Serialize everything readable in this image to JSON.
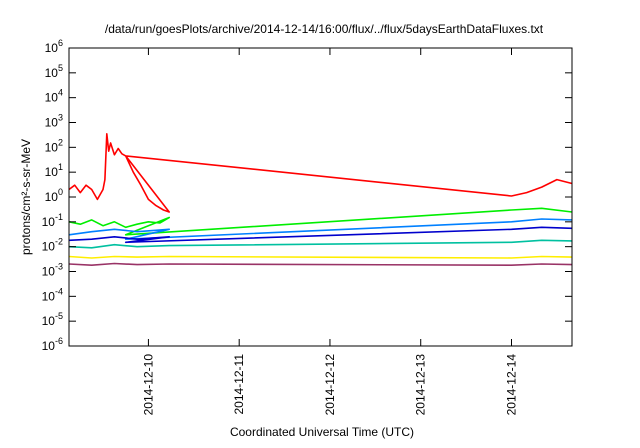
{
  "chart_data": {
    "type": "line",
    "title": "/data/run/goesPlots/archive/2014-12-14/16:00/flux/../flux/5daysEarthDataFluxes.txt",
    "xlabel": "Coordinated Universal Time (UTC)",
    "ylabel": "protons/cm²-s-sr-MeV",
    "x_axis_type": "date",
    "xlim": [
      "2014-12-09 03:00",
      "2014-12-14 16:00"
    ],
    "x_ticks": [
      {
        "x": "2014-12-10 00:00",
        "label": "2014-12-10"
      },
      {
        "x": "2014-12-11 00:00",
        "label": "2014-12-11"
      },
      {
        "x": "2014-12-12 00:00",
        "label": "2014-12-12"
      },
      {
        "x": "2014-12-13 00:00",
        "label": "2014-12-13"
      },
      {
        "x": "2014-12-14 00:00",
        "label": "2014-12-14"
      }
    ],
    "y_scale": "log",
    "ylim": [
      1e-06,
      1000000.0
    ],
    "y_ticks": [
      {
        "value": 1e-06,
        "base": "10",
        "exp": "-6"
      },
      {
        "value": 1e-05,
        "base": "10",
        "exp": "-5"
      },
      {
        "value": 0.0001,
        "base": "10",
        "exp": "-4"
      },
      {
        "value": 0.001,
        "base": "10",
        "exp": "-3"
      },
      {
        "value": 0.01,
        "base": "10",
        "exp": "-2"
      },
      {
        "value": 0.1,
        "base": "10",
        "exp": "-1"
      },
      {
        "value": 1,
        "base": "10",
        "exp": "0"
      },
      {
        "value": 10,
        "base": "10",
        "exp": "1"
      },
      {
        "value": 100,
        "base": "10",
        "exp": "2"
      },
      {
        "value": 1000,
        "base": "10",
        "exp": "3"
      },
      {
        "value": 10000,
        "base": "10",
        "exp": "4"
      },
      {
        "value": 100000,
        "base": "10",
        "exp": "5"
      },
      {
        "value": 1000000,
        "base": "10",
        "exp": "6"
      }
    ],
    "grid": false,
    "series": [
      {
        "color": "#ff0000",
        "points": [
          [
            "2014-12-09 03:00",
            2
          ],
          [
            "2014-12-09 04:30",
            3
          ],
          [
            "2014-12-09 06:00",
            1.5
          ],
          [
            "2014-12-09 07:30",
            3
          ],
          [
            "2014-12-09 09:00",
            2
          ],
          [
            "2014-12-09 10:30",
            0.8
          ],
          [
            "2014-12-09 12:00",
            2
          ],
          [
            "2014-12-09 12:30",
            5
          ],
          [
            "2014-12-09 13:00",
            350
          ],
          [
            "2014-12-09 13:30",
            70
          ],
          [
            "2014-12-09 14:00",
            150
          ],
          [
            "2014-12-09 15:00",
            50
          ],
          [
            "2014-12-09 16:00",
            90
          ],
          [
            "2014-12-09 17:00",
            55
          ],
          [
            "2014-12-09 18:00",
            45
          ],
          [
            "2014-12-09 20:00",
            10
          ],
          [
            "2014-12-09 22:00",
            3
          ],
          [
            "2014-12-10 00:00",
            0.8
          ],
          [
            "2014-12-10 02:00",
            0.45
          ],
          [
            "2014-12-10 04:00",
            0.3
          ],
          [
            "2014-12-10 05:30",
            0.25
          ],
          [
            "2014-12-09 18:00",
            45
          ],
          [
            "2014-12-14 00:00",
            1.1
          ],
          [
            "2014-12-14 04:00",
            1.5
          ],
          [
            "2014-12-14 08:00",
            2.5
          ],
          [
            "2014-12-14 12:00",
            5
          ],
          [
            "2014-12-14 16:00",
            3.5
          ]
        ]
      },
      {
        "color": "#00ee00",
        "points": [
          [
            "2014-12-09 03:00",
            0.1
          ],
          [
            "2014-12-09 06:00",
            0.08
          ],
          [
            "2014-12-09 09:00",
            0.12
          ],
          [
            "2014-12-09 12:00",
            0.07
          ],
          [
            "2014-12-09 15:00",
            0.1
          ],
          [
            "2014-12-09 18:00",
            0.06
          ],
          [
            "2014-12-09 21:00",
            0.08
          ],
          [
            "2014-12-10 00:00",
            0.1
          ],
          [
            "2014-12-10 03:00",
            0.09
          ],
          [
            "2014-12-10 05:30",
            0.15
          ],
          [
            "2014-12-09 18:00",
            0.03
          ],
          [
            "2014-12-14 00:00",
            0.3
          ],
          [
            "2014-12-14 08:00",
            0.35
          ],
          [
            "2014-12-14 16:00",
            0.25
          ]
        ]
      },
      {
        "color": "#0080ff",
        "points": [
          [
            "2014-12-09 03:00",
            0.03
          ],
          [
            "2014-12-09 09:00",
            0.04
          ],
          [
            "2014-12-09 15:00",
            0.05
          ],
          [
            "2014-12-09 21:00",
            0.04
          ],
          [
            "2014-12-10 05:30",
            0.05
          ],
          [
            "2014-12-09 18:00",
            0.02
          ],
          [
            "2014-12-14 00:00",
            0.1
          ],
          [
            "2014-12-14 08:00",
            0.13
          ],
          [
            "2014-12-14 16:00",
            0.12
          ]
        ]
      },
      {
        "color": "#0000cc",
        "points": [
          [
            "2014-12-09 03:00",
            0.018
          ],
          [
            "2014-12-09 09:00",
            0.02
          ],
          [
            "2014-12-09 15:00",
            0.025
          ],
          [
            "2014-12-09 21:00",
            0.02
          ],
          [
            "2014-12-10 05:30",
            0.025
          ],
          [
            "2014-12-09 18:00",
            0.015
          ],
          [
            "2014-12-14 00:00",
            0.05
          ],
          [
            "2014-12-14 08:00",
            0.06
          ],
          [
            "2014-12-14 16:00",
            0.055
          ]
        ]
      },
      {
        "color": "#00c0a0",
        "points": [
          [
            "2014-12-09 03:00",
            0.01
          ],
          [
            "2014-12-09 09:00",
            0.009
          ],
          [
            "2014-12-09 15:00",
            0.012
          ],
          [
            "2014-12-09 21:00",
            0.01
          ],
          [
            "2014-12-10 05:30",
            0.011
          ],
          [
            "2014-12-14 00:00",
            0.015
          ],
          [
            "2014-12-14 08:00",
            0.018
          ],
          [
            "2014-12-14 16:00",
            0.017
          ]
        ]
      },
      {
        "color": "#ffee00",
        "points": [
          [
            "2014-12-09 03:00",
            0.004
          ],
          [
            "2014-12-09 09:00",
            0.0035
          ],
          [
            "2014-12-09 15:00",
            0.004
          ],
          [
            "2014-12-09 21:00",
            0.0038
          ],
          [
            "2014-12-10 05:30",
            0.004
          ],
          [
            "2014-12-14 00:00",
            0.0035
          ],
          [
            "2014-12-14 08:00",
            0.004
          ],
          [
            "2014-12-14 16:00",
            0.0038
          ]
        ]
      },
      {
        "color": "#993366",
        "points": [
          [
            "2014-12-09 03:00",
            0.002
          ],
          [
            "2014-12-09 09:00",
            0.0018
          ],
          [
            "2014-12-09 15:00",
            0.0021
          ],
          [
            "2014-12-09 21:00",
            0.0019
          ],
          [
            "2014-12-10 05:30",
            0.002
          ],
          [
            "2014-12-14 00:00",
            0.0018
          ],
          [
            "2014-12-14 08:00",
            0.002
          ],
          [
            "2014-12-14 16:00",
            0.0019
          ]
        ]
      }
    ]
  }
}
